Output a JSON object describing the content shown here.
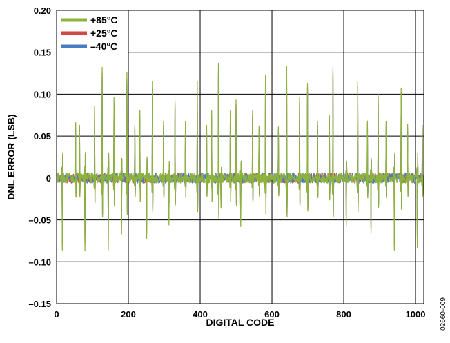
{
  "chart_data": {
    "type": "line",
    "xlabel": "DIGITAL CODE",
    "ylabel": "DNL ERROR (LSB)",
    "xlim": [
      0,
      1023
    ],
    "ylim": [
      -0.15,
      0.2
    ],
    "x_ticks": [
      0,
      200,
      400,
      600,
      800,
      1000
    ],
    "x_tick_labels": [
      "0",
      "200",
      "400",
      "600",
      "800",
      "1000"
    ],
    "y_ticks": [
      -0.15,
      -0.1,
      -0.05,
      0,
      0.05,
      0.1,
      0.15,
      0.2
    ],
    "y_tick_labels": [
      "–0.15",
      "–0.10",
      "–0.05",
      "0",
      "0.05",
      "0.10",
      "0.15",
      "0.20"
    ],
    "grid": true,
    "legend_position": "top-left",
    "series": [
      {
        "name": "+85°C",
        "color": "#8db33d"
      },
      {
        "name": "+25°C",
        "color": "#d04a45"
      },
      {
        "name": "–40°C",
        "color": "#4a7cc4"
      }
    ],
    "noise_amplitude": 0.006,
    "spikes": [
      {
        "code": 16,
        "values": [
          -0.086,
          -0.08,
          -0.07
        ]
      },
      {
        "code": 53,
        "values": [
          0.066,
          0.064,
          0.06
        ]
      },
      {
        "code": 64,
        "values": [
          0.063,
          0.06,
          0.056
        ]
      },
      {
        "code": 79,
        "values": [
          -0.087,
          -0.08,
          -0.07
        ]
      },
      {
        "code": 106,
        "values": [
          0.086,
          0.082,
          0.078
        ]
      },
      {
        "code": 127,
        "values": [
          0.132,
          0.125,
          0.12
        ]
      },
      {
        "code": 144,
        "values": [
          -0.086,
          -0.08,
          -0.07
        ]
      },
      {
        "code": 160,
        "values": [
          0.096,
          0.09,
          0.086
        ]
      },
      {
        "code": 181,
        "values": [
          -0.067,
          -0.06,
          -0.055
        ]
      },
      {
        "code": 196,
        "values": [
          0.126,
          0.118,
          0.112
        ]
      },
      {
        "code": 218,
        "values": [
          0.063,
          0.06,
          0.056
        ]
      },
      {
        "code": 232,
        "values": [
          0.081,
          0.076,
          0.072
        ]
      },
      {
        "code": 251,
        "values": [
          -0.072,
          -0.065,
          -0.06
        ]
      },
      {
        "code": 267,
        "values": [
          0.115,
          0.108,
          0.103
        ]
      },
      {
        "code": 298,
        "values": [
          0.067,
          0.063,
          0.06
        ]
      },
      {
        "code": 313,
        "values": [
          -0.056,
          -0.05,
          -0.046
        ]
      },
      {
        "code": 330,
        "values": [
          0.092,
          0.087,
          0.082
        ]
      },
      {
        "code": 359,
        "values": [
          0.067,
          0.063,
          0.06
        ]
      },
      {
        "code": 392,
        "values": [
          0.115,
          0.108,
          0.104
        ]
      },
      {
        "code": 418,
        "values": [
          0.063,
          0.06,
          0.056
        ]
      },
      {
        "code": 432,
        "values": [
          0.08,
          0.076,
          0.071
        ]
      },
      {
        "code": 451,
        "values": [
          0.137,
          0.128,
          0.122
        ]
      },
      {
        "code": 458,
        "values": [
          -0.036,
          -0.033,
          -0.03
        ]
      },
      {
        "code": 484,
        "values": [
          0.08,
          0.076,
          0.072
        ]
      },
      {
        "code": 500,
        "values": [
          0.093,
          0.088,
          0.083
        ]
      },
      {
        "code": 513,
        "values": [
          -0.058,
          -0.052,
          -0.048
        ]
      },
      {
        "code": 546,
        "values": [
          0.081,
          0.076,
          0.072
        ]
      },
      {
        "code": 564,
        "values": [
          0.062,
          0.058,
          0.055
        ]
      },
      {
        "code": 582,
        "values": [
          0.122,
          0.115,
          0.11
        ]
      },
      {
        "code": 618,
        "values": [
          0.061,
          0.058,
          0.054
        ]
      },
      {
        "code": 641,
        "values": [
          0.133,
          0.125,
          0.12
        ]
      },
      {
        "code": 677,
        "values": [
          0.096,
          0.09,
          0.086
        ]
      },
      {
        "code": 699,
        "values": [
          0.113,
          0.108,
          0.102
        ]
      },
      {
        "code": 727,
        "values": [
          0.067,
          0.063,
          0.058
        ]
      },
      {
        "code": 760,
        "values": [
          0.075,
          0.071,
          0.067
        ]
      },
      {
        "code": 770,
        "values": [
          0.132,
          0.125,
          0.12
        ]
      },
      {
        "code": 807,
        "values": [
          -0.058,
          -0.053,
          -0.048
        ]
      },
      {
        "code": 839,
        "values": [
          0.115,
          0.109,
          0.103
        ]
      },
      {
        "code": 866,
        "values": [
          0.068,
          0.064,
          0.06
        ]
      },
      {
        "code": 876,
        "values": [
          -0.066,
          -0.06,
          -0.055
        ]
      },
      {
        "code": 896,
        "values": [
          0.1,
          0.095,
          0.09
        ]
      },
      {
        "code": 918,
        "values": [
          0.067,
          0.063,
          0.06
        ]
      },
      {
        "code": 941,
        "values": [
          -0.086,
          -0.08,
          -0.072
        ]
      },
      {
        "code": 960,
        "values": [
          0.107,
          0.101,
          0.096
        ]
      },
      {
        "code": 978,
        "values": [
          0.064,
          0.06,
          0.056
        ]
      },
      {
        "code": 1005,
        "values": [
          -0.083,
          -0.077,
          -0.07
        ]
      },
      {
        "code": 1019,
        "values": [
          0.063,
          0.06,
          0.056
        ]
      }
    ]
  },
  "figure_code": "02660-009"
}
